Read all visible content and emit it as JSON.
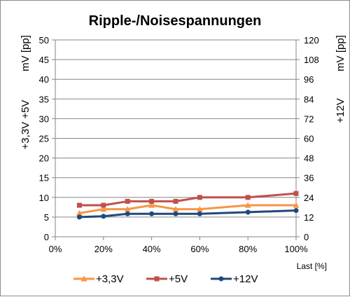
{
  "chart_data": {
    "type": "line",
    "title": "Ripple-/Noisespannungen",
    "x": [
      10,
      20,
      30,
      40,
      50,
      60,
      80,
      100
    ],
    "x_tick_labels": [
      "0%",
      "20%",
      "40%",
      "60%",
      "80%",
      "100%"
    ],
    "x_ticks": [
      0,
      20,
      40,
      60,
      80,
      100
    ],
    "xlim": [
      0,
      100
    ],
    "xlabel": "Last [%]",
    "ylabel_left_1": "+3,3V +5V",
    "ylabel_left_2": "mV [pp]",
    "ylabel_right_1": "mV [pp]",
    "ylabel_right_2": "+12V",
    "ylim_left": [
      0,
      50
    ],
    "ylim_right": [
      0,
      120
    ],
    "yticks_left": [
      "0",
      "5",
      "10",
      "15",
      "20",
      "25",
      "30",
      "35",
      "40",
      "45",
      "50"
    ],
    "yticks_right": [
      "0",
      "12",
      "24",
      "36",
      "48",
      "60",
      "72",
      "84",
      "96",
      "108",
      "120"
    ],
    "grid": true,
    "legend_position": "bottom",
    "series": [
      {
        "name": "+3,3V",
        "axis": "left",
        "color": "#f79646",
        "marker": "triangle",
        "values": [
          6,
          7,
          7,
          8,
          7,
          7,
          8,
          8
        ]
      },
      {
        "name": "+5V",
        "axis": "left",
        "color": "#c0504d",
        "marker": "square",
        "values": [
          8,
          8,
          9,
          9,
          9,
          10,
          10,
          11
        ]
      },
      {
        "name": "+12V",
        "axis": "right",
        "color": "#1f497d",
        "marker": "circle",
        "values": [
          12,
          12.5,
          14,
          14,
          14,
          14,
          15,
          16
        ]
      }
    ]
  }
}
